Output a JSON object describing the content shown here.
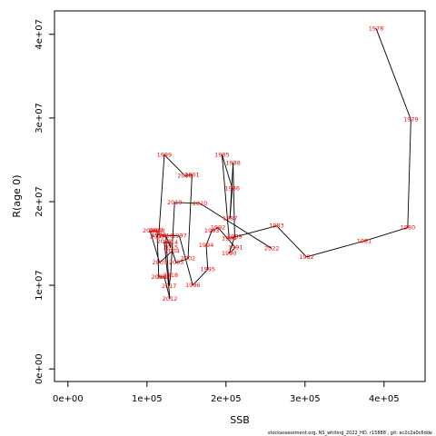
{
  "chart_data": {
    "type": "line",
    "title": "",
    "xlabel": "SSB",
    "ylabel": "R(age 0)",
    "xlim": [
      -17000,
      452000
    ],
    "ylim": [
      -1500000,
      42800000
    ],
    "x_ticks": [
      {
        "value": 0,
        "label": "0e+00"
      },
      {
        "value": 100000,
        "label": "1e+05"
      },
      {
        "value": 200000,
        "label": "2e+05"
      },
      {
        "value": 300000,
        "label": "3e+05"
      },
      {
        "value": 400000,
        "label": "4e+05"
      }
    ],
    "y_ticks": [
      {
        "value": 0,
        "label": "0e+00"
      },
      {
        "value": 10000000,
        "label": "1e+07"
      },
      {
        "value": 20000000,
        "label": "2e+07"
      },
      {
        "value": 30000000,
        "label": "3e+07"
      },
      {
        "value": 40000000,
        "label": "4e+07"
      }
    ],
    "grid": false,
    "line_color": "#000000",
    "label_color": "#ff0000",
    "points": [
      {
        "year": "1978",
        "x": 390000,
        "y": 40700000
      },
      {
        "year": "1979",
        "x": 434000,
        "y": 29800000
      },
      {
        "year": "1980",
        "x": 430000,
        "y": 16900000
      },
      {
        "year": "1981",
        "x": 375000,
        "y": 15300000
      },
      {
        "year": "1982",
        "x": 302000,
        "y": 13400000
      },
      {
        "year": "1983",
        "x": 264000,
        "y": 17100000
      },
      {
        "year": "1984",
        "x": 204000,
        "y": 15600000
      },
      {
        "year": "1985",
        "x": 195000,
        "y": 25600000
      },
      {
        "year": "1986",
        "x": 208000,
        "y": 21600000
      },
      {
        "year": "1987",
        "x": 205000,
        "y": 18000000
      },
      {
        "year": "1988",
        "x": 209000,
        "y": 24600000
      },
      {
        "year": "1989",
        "x": 211000,
        "y": 15800000
      },
      {
        "year": "1990",
        "x": 204000,
        "y": 13800000
      },
      {
        "year": "1991",
        "x": 212000,
        "y": 14500000
      },
      {
        "year": "1992",
        "x": 190000,
        "y": 16900000
      },
      {
        "year": "1993",
        "x": 182000,
        "y": 16500000
      },
      {
        "year": "1994",
        "x": 175000,
        "y": 14800000
      },
      {
        "year": "1995",
        "x": 177000,
        "y": 11900000
      },
      {
        "year": "1996",
        "x": 158000,
        "y": 10000000
      },
      {
        "year": "1997",
        "x": 141000,
        "y": 15900000
      },
      {
        "year": "1998",
        "x": 115000,
        "y": 16000000
      },
      {
        "year": "1999",
        "x": 122000,
        "y": 25600000
      },
      {
        "year": "2000",
        "x": 148000,
        "y": 23100000
      },
      {
        "year": "2001",
        "x": 157000,
        "y": 23200000
      },
      {
        "year": "2002",
        "x": 152000,
        "y": 13200000
      },
      {
        "year": "2003",
        "x": 137000,
        "y": 12700000
      },
      {
        "year": "2004",
        "x": 132000,
        "y": 14100000
      },
      {
        "year": "2005",
        "x": 116000,
        "y": 12700000
      },
      {
        "year": "2006",
        "x": 104000,
        "y": 16500000
      },
      {
        "year": "2007",
        "x": 111000,
        "y": 16500000
      },
      {
        "year": "2008",
        "x": 113000,
        "y": 16500000
      },
      {
        "year": "2009",
        "x": 113000,
        "y": 15800000
      },
      {
        "year": "2010",
        "x": 115000,
        "y": 11000000
      },
      {
        "year": "2011",
        "x": 122000,
        "y": 11000000
      },
      {
        "year": "2012",
        "x": 129000,
        "y": 8400000
      },
      {
        "year": "2013",
        "x": 122000,
        "y": 15200000
      },
      {
        "year": "2014",
        "x": 130000,
        "y": 15100000
      },
      {
        "year": "2015",
        "x": 130000,
        "y": 14500000
      },
      {
        "year": "2016",
        "x": 124000,
        "y": 15900000
      },
      {
        "year": "2017",
        "x": 128000,
        "y": 9900000
      },
      {
        "year": "2018",
        "x": 130000,
        "y": 11200000
      },
      {
        "year": "2019",
        "x": 135000,
        "y": 19900000
      },
      {
        "year": "2020",
        "x": 167000,
        "y": 19800000
      },
      {
        "year": "2022",
        "x": 258000,
        "y": 14400000
      }
    ]
  },
  "footnote": "stockassessment.org, NS_whiting_2022_HD, r15888 , git: ec2c2a0c6dde"
}
